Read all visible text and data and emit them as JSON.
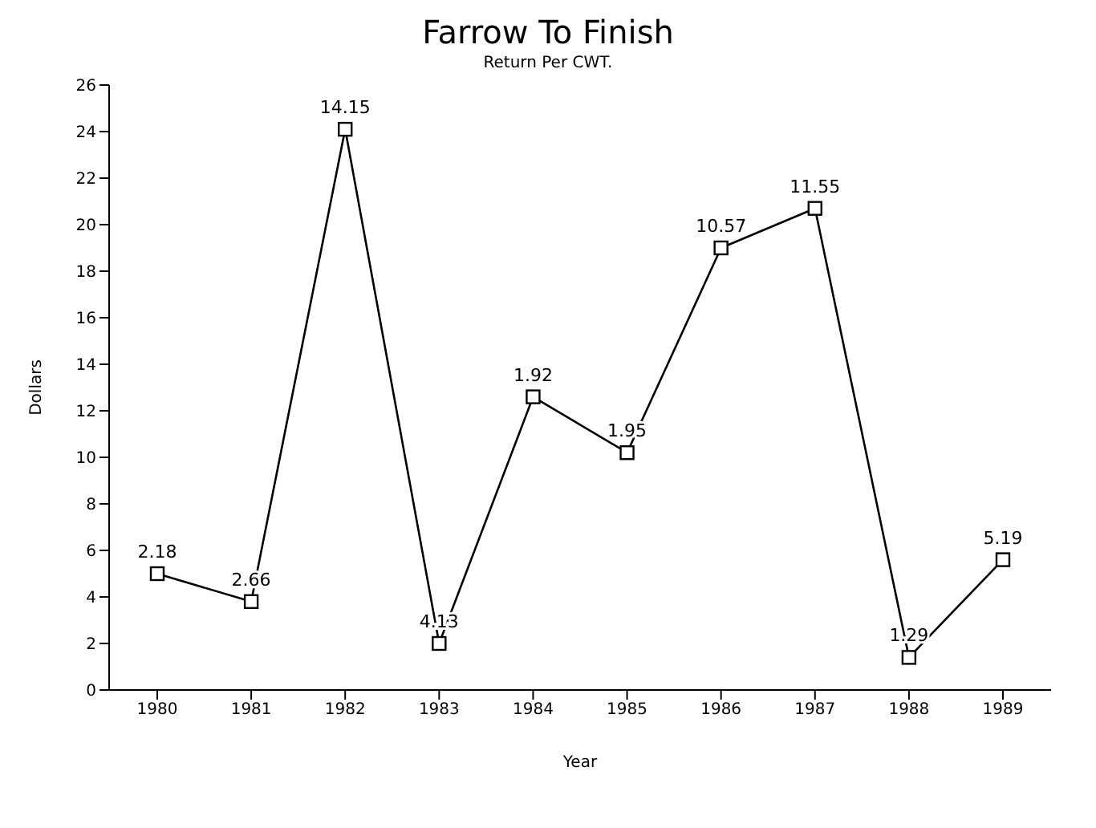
{
  "chart_data": {
    "type": "line",
    "title": "Farrow To Finish",
    "subtitle": "Return Per CWT.",
    "xlabel": "Year",
    "ylabel": "Dollars",
    "categories": [
      "1980",
      "1981",
      "1982",
      "1983",
      "1984",
      "1985",
      "1986",
      "1987",
      "1988",
      "1989"
    ],
    "series": [
      {
        "color": "#000000",
        "values": [
          5.0,
          3.8,
          24.1,
          2.0,
          12.6,
          10.2,
          19.0,
          20.7,
          1.4,
          5.6
        ]
      }
    ],
    "annotations": [
      {
        "text": "2.18",
        "x": "1980",
        "y": 5.0
      },
      {
        "text": "2.66",
        "x": "1981",
        "y": 3.8
      },
      {
        "text": "14.15",
        "x": "1982",
        "y": 24.1
      },
      {
        "text": "4.13",
        "x": "1983",
        "y": 2.0
      },
      {
        "text": "1.92",
        "x": "1984",
        "y": 12.6
      },
      {
        "text": "1.95",
        "x": "1985",
        "y": 10.2
      },
      {
        "text": "10.57",
        "x": "1986",
        "y": 19.0
      },
      {
        "text": "11.55",
        "x": "1987",
        "y": 20.7
      },
      {
        "text": "1.29",
        "x": "1988",
        "y": 1.4
      },
      {
        "text": "5.19",
        "x": "1989",
        "y": 5.6
      }
    ],
    "ylim": [
      0,
      26
    ],
    "yticks": [
      0,
      2,
      4,
      6,
      8,
      10,
      12,
      14,
      16,
      18,
      20,
      22,
      24,
      26
    ],
    "marker": "square",
    "line_style": "solid",
    "grid": false,
    "legend": false
  }
}
